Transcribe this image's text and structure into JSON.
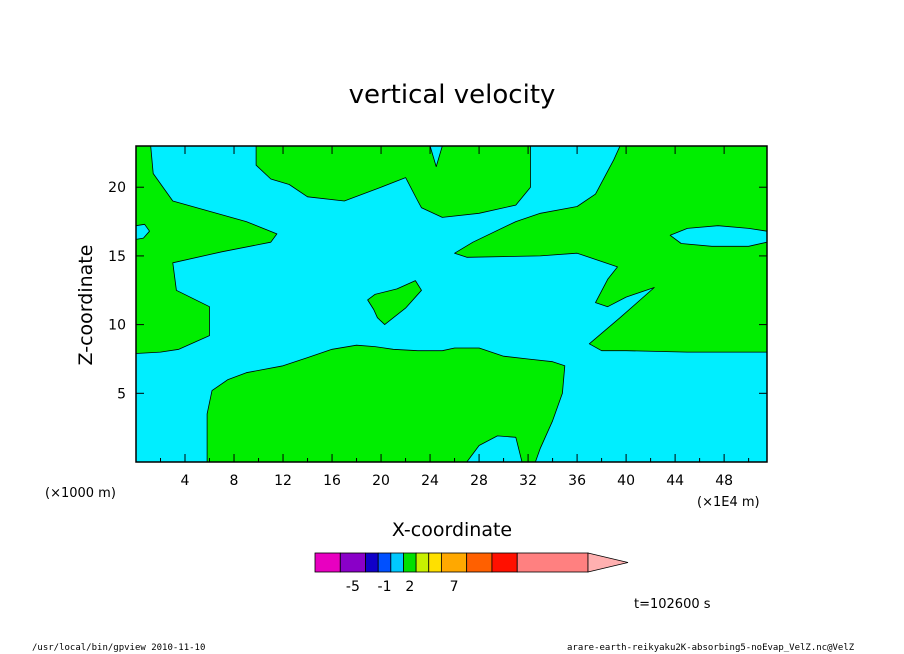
{
  "chart_data": {
    "type": "contour",
    "title": "vertical velocity",
    "xlabel": "X-coordinate",
    "ylabel": "Z-coordinate",
    "x_unit": "(×1E4 m)",
    "y_unit": "(×1000 m)",
    "xlim": [
      0,
      51.5
    ],
    "ylim": [
      0,
      23
    ],
    "x_ticks": [
      4,
      8,
      12,
      16,
      20,
      24,
      28,
      32,
      36,
      40,
      44,
      48
    ],
    "y_ticks": [
      5,
      10,
      15,
      20
    ],
    "fill_colors": {
      "negative": "#00eeff",
      "positive": "#00ee00"
    },
    "positive_regions": [
      {
        "name": "lower-center",
        "points": [
          [
            5.8,
            0
          ],
          [
            5.8,
            3.5
          ],
          [
            6.2,
            5.2
          ],
          [
            7.5,
            6
          ],
          [
            9,
            6.5
          ],
          [
            12,
            7
          ],
          [
            14,
            7.6
          ],
          [
            16,
            8.2
          ],
          [
            18,
            8.5
          ],
          [
            19.5,
            8.4
          ],
          [
            21,
            8.2
          ],
          [
            23,
            8.1
          ],
          [
            25,
            8.1
          ],
          [
            26,
            8.3
          ],
          [
            28,
            8.3
          ],
          [
            30,
            7.7
          ],
          [
            32,
            7.5
          ],
          [
            34,
            7.3
          ],
          [
            35,
            7
          ],
          [
            34.8,
            5
          ],
          [
            34,
            3
          ],
          [
            33,
            1
          ],
          [
            32.6,
            0
          ],
          [
            31.5,
            0
          ],
          [
            31,
            1.8
          ],
          [
            29.5,
            1.9
          ],
          [
            28,
            1.2
          ],
          [
            27,
            0
          ],
          [
            5.8,
            0
          ]
        ]
      },
      {
        "name": "left-band",
        "points": [
          [
            0,
            7.9
          ],
          [
            0,
            23
          ],
          [
            1.2,
            23
          ],
          [
            1.4,
            21
          ],
          [
            3,
            19
          ],
          [
            7,
            18
          ],
          [
            9,
            17.5
          ],
          [
            11.5,
            16.6
          ],
          [
            11,
            16
          ],
          [
            7,
            15.3
          ],
          [
            3,
            14.5
          ],
          [
            3.3,
            12.5
          ],
          [
            6,
            11.3
          ],
          [
            6,
            9.2
          ],
          [
            3.5,
            8.2
          ],
          [
            2,
            8
          ],
          [
            0,
            7.9
          ]
        ]
      },
      {
        "name": "top-center",
        "points": [
          [
            9.8,
            23
          ],
          [
            9.8,
            21.6
          ],
          [
            11,
            20.6
          ],
          [
            12.5,
            20.2
          ],
          [
            14,
            19.3
          ],
          [
            17,
            19
          ],
          [
            20,
            20
          ],
          [
            22,
            20.7
          ],
          [
            23,
            19
          ],
          [
            23.3,
            18.5
          ],
          [
            25,
            17.8
          ],
          [
            28,
            18.1
          ],
          [
            31,
            18.7
          ],
          [
            32.2,
            20
          ],
          [
            32.2,
            23
          ],
          [
            30,
            23
          ],
          [
            27.5,
            23
          ],
          [
            25,
            23
          ],
          [
            24.5,
            21.5
          ],
          [
            24,
            23
          ],
          [
            9.8,
            23
          ]
        ]
      },
      {
        "name": "right-band",
        "points": [
          [
            51.5,
            23
          ],
          [
            51.5,
            8
          ],
          [
            45,
            8
          ],
          [
            40,
            8.1
          ],
          [
            38,
            8.1
          ],
          [
            37,
            8.6
          ],
          [
            39.5,
            10.5
          ],
          [
            42.3,
            12.7
          ],
          [
            40,
            12
          ],
          [
            38.5,
            11.3
          ],
          [
            37.5,
            11.6
          ],
          [
            38.5,
            13.3
          ],
          [
            39.3,
            14.2
          ],
          [
            36,
            15.2
          ],
          [
            33,
            15
          ],
          [
            27,
            14.9
          ],
          [
            26,
            15.2
          ],
          [
            27.5,
            16
          ],
          [
            31,
            17.5
          ],
          [
            33,
            18.1
          ],
          [
            36,
            18.6
          ],
          [
            37.5,
            19.5
          ],
          [
            39,
            22
          ],
          [
            39.5,
            23
          ],
          [
            51.5,
            23
          ]
        ]
      },
      {
        "name": "center-blob",
        "points": [
          [
            18.9,
            11.8
          ],
          [
            19.5,
            12.2
          ],
          [
            21.3,
            12.6
          ],
          [
            22.8,
            13.2
          ],
          [
            23.3,
            12.5
          ],
          [
            22,
            11.2
          ],
          [
            20.3,
            10
          ],
          [
            19.7,
            10.5
          ],
          [
            19.4,
            11.1
          ],
          [
            18.9,
            11.8
          ]
        ]
      }
    ],
    "negative_islands": [
      {
        "name": "right-oval",
        "points": [
          [
            43.6,
            16.5
          ],
          [
            45,
            17
          ],
          [
            47.5,
            17.2
          ],
          [
            50,
            17
          ],
          [
            51.5,
            16.8
          ],
          [
            51.5,
            16
          ],
          [
            50,
            15.7
          ],
          [
            47,
            15.7
          ],
          [
            44.5,
            15.9
          ],
          [
            43.6,
            16.5
          ]
        ]
      },
      {
        "name": "left-edge-notch",
        "points": [
          [
            0,
            17.2
          ],
          [
            0.7,
            17.3
          ],
          [
            1.1,
            16.8
          ],
          [
            0.6,
            16.3
          ],
          [
            0,
            16.2
          ]
        ]
      }
    ],
    "colorbar": {
      "colors": [
        "#e800c0",
        "#8a00c8",
        "#1000c8",
        "#0050ff",
        "#00c8ff",
        "#00e000",
        "#c8f000",
        "#ffe000",
        "#ffa800",
        "#ff6000",
        "#ff1000",
        "#ff8080"
      ],
      "segment_widths": [
        1,
        1,
        0.5,
        0.5,
        0.5,
        0.5,
        0.5,
        0.5,
        1,
        1,
        1,
        2.8
      ],
      "extend_color": "#ffb0b0",
      "labels": [
        "-5",
        "-1",
        "2",
        "7"
      ],
      "label_segment_index": [
        1.5,
        3.5,
        5.5,
        8.5
      ]
    },
    "time_label": "t=102600 s"
  },
  "footer": {
    "left": "/usr/local/bin/gpview  2010-11-10",
    "right": "arare-earth-reikyaku2K-absorbing5-noEvap_VelZ.nc@VelZ"
  }
}
